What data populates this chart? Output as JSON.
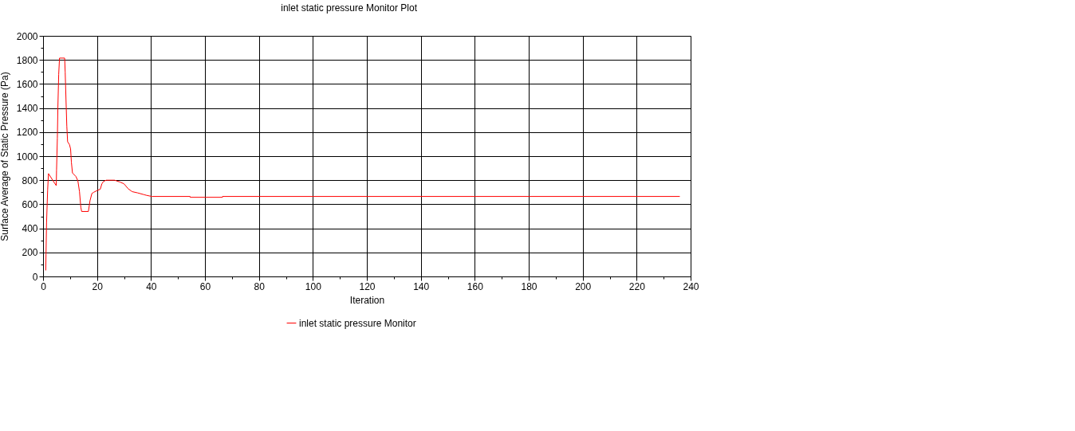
{
  "chart_data": {
    "type": "line",
    "title": "inlet static pressure Monitor Plot",
    "xlabel": "Iteration",
    "ylabel": "Surface Average of Static Pressure (Pa)",
    "series": [
      {
        "name": "inlet static pressure Monitor",
        "color": "#ff0000",
        "x": [
          1,
          1.1,
          1.3,
          1.7,
          2,
          4.3,
          4.9,
          5,
          5.3,
          5.5,
          5.8,
          6.1,
          8,
          8.2,
          8.5,
          8.8,
          9.1,
          9.8,
          10.2,
          10.5,
          10.9,
          12.2,
          12.9,
          13.5,
          14,
          14.3,
          16.8,
          17.4,
          18.1,
          18.8,
          20.1,
          21.2,
          21.8,
          22.4,
          23.4,
          26.5,
          28.5,
          30,
          31.5,
          33,
          35,
          37.4,
          38.2,
          40.3,
          54.5,
          54.5,
          66.5,
          66.5,
          236
        ],
        "values": [
          50,
          190,
          450,
          720,
          855,
          775,
          755,
          885,
          1150,
          1410,
          1680,
          1815,
          1815,
          1700,
          1470,
          1250,
          1120,
          1095,
          1060,
          950,
          860,
          830,
          795,
          705,
          575,
          540,
          540,
          630,
          690,
          700,
          715,
          725,
          770,
          790,
          800,
          800,
          785,
          770,
          730,
          705,
          695,
          680,
          675,
          665,
          665,
          658,
          658,
          665,
          665
        ]
      }
    ],
    "xlim": [
      0,
      240
    ],
    "ylim": [
      0,
      2000
    ],
    "xticks": [
      0,
      {
        "value": 10,
        "label": null
      },
      20,
      {
        "value": 30,
        "label": null
      },
      40,
      {
        "value": 50,
        "label": null
      },
      60,
      {
        "value": 70,
        "label": null
      },
      80,
      {
        "value": 90,
        "label": null
      },
      100,
      {
        "value": 110,
        "label": null
      },
      120,
      {
        "value": 130,
        "label": null
      },
      140,
      {
        "value": 150,
        "label": null
      },
      160,
      {
        "value": 170,
        "label": null
      },
      180,
      {
        "value": 190,
        "label": null
      },
      200,
      {
        "value": 210,
        "label": null
      },
      220,
      {
        "value": 230,
        "label": null
      },
      240
    ],
    "yticks": [
      0,
      {
        "value": 100,
        "label": null
      },
      200,
      {
        "value": 300,
        "label": null
      },
      400,
      {
        "value": 500,
        "label": null
      },
      600,
      {
        "value": 700,
        "label": null
      },
      800,
      {
        "value": 900,
        "label": null
      },
      1000,
      {
        "value": 1100,
        "label": null
      },
      1200,
      {
        "value": 1300,
        "label": null
      },
      1400,
      {
        "value": 1500,
        "label": null
      },
      1600,
      {
        "value": 1700,
        "label": null
      },
      1800,
      {
        "value": 1900,
        "label": null
      },
      2000
    ],
    "grid": true,
    "legend": "bottom",
    "line_style": "solid"
  }
}
